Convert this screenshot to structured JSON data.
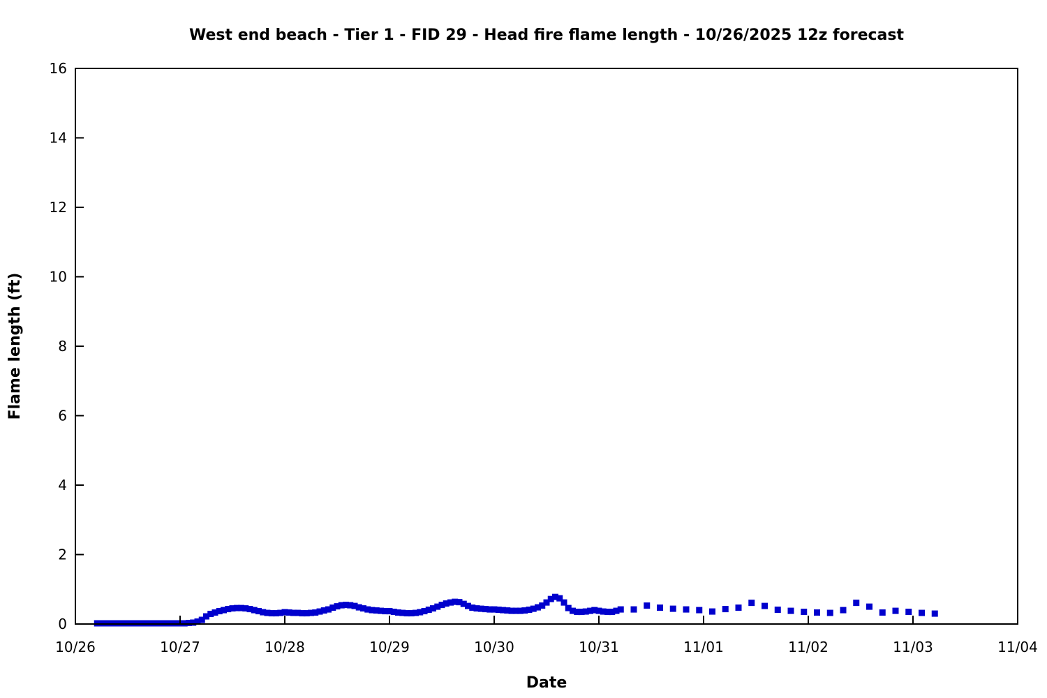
{
  "figure": {
    "background_color": "#ffffff"
  },
  "chart_data": {
    "type": "scatter",
    "title": "West end beach - Tier 1 - FID 29 - Head fire flame length - 10/26/2025 12z forecast",
    "xlabel": "Date",
    "ylabel": "Flame length (ft)",
    "grid": false,
    "legend": null,
    "axis_color": "#000000",
    "marker": "square",
    "marker_color": "#0000CD",
    "marker_size_px": 9,
    "ylim": [
      0,
      16
    ],
    "yticks": [
      0,
      2,
      4,
      6,
      8,
      10,
      12,
      14,
      16
    ],
    "x_axis_days": [
      "10/26",
      "10/27",
      "10/28",
      "10/29",
      "10/30",
      "10/31",
      "11/01",
      "11/02",
      "11/03",
      "11/04"
    ],
    "series": [
      {
        "cadence": "hourly",
        "start_day_index": 0,
        "start_hour": 5,
        "interval_hours": 1,
        "values": [
          0.02,
          0.02,
          0.02,
          0.02,
          0.02,
          0.02,
          0.02,
          0.02,
          0.02,
          0.02,
          0.02,
          0.02,
          0.02,
          0.02,
          0.02,
          0.02,
          0.02,
          0.02,
          0.02,
          0.02,
          0.02,
          0.03,
          0.04,
          0.07,
          0.12,
          0.22,
          0.29,
          0.33,
          0.37,
          0.4,
          0.43,
          0.45,
          0.46,
          0.46,
          0.45,
          0.43,
          0.4,
          0.37,
          0.34,
          0.32,
          0.31,
          0.31,
          0.32,
          0.34,
          0.33,
          0.32,
          0.32,
          0.31,
          0.31,
          0.32,
          0.33,
          0.36,
          0.39,
          0.42,
          0.47,
          0.51,
          0.54,
          0.55,
          0.54,
          0.52,
          0.48,
          0.45,
          0.42,
          0.4,
          0.39,
          0.38,
          0.37,
          0.37,
          0.35,
          0.33,
          0.32,
          0.31,
          0.31,
          0.32,
          0.34,
          0.37,
          0.41,
          0.45,
          0.5,
          0.55,
          0.59,
          0.62,
          0.64,
          0.63,
          0.58,
          0.52,
          0.47,
          0.45,
          0.44,
          0.43,
          0.42,
          0.42,
          0.41,
          0.4,
          0.39,
          0.38,
          0.38,
          0.38,
          0.39,
          0.41,
          0.44,
          0.48,
          0.53,
          0.62,
          0.72,
          0.78,
          0.74,
          0.62,
          0.46,
          0.38,
          0.35,
          0.35,
          0.36,
          0.38,
          0.4,
          0.38,
          0.36,
          0.35,
          0.35,
          0.38,
          0.42
        ]
      },
      {
        "cadence": "3-hourly",
        "start_day_index": 5,
        "start_hour": 8,
        "interval_hours": 3,
        "values": [
          0.42,
          0.53,
          0.47,
          0.44,
          0.42,
          0.4,
          0.36,
          0.43,
          0.47,
          0.61,
          0.52,
          0.41,
          0.38,
          0.35,
          0.33,
          0.32,
          0.4,
          0.61,
          0.5,
          0.33,
          0.38,
          0.35,
          0.32,
          0.3
        ]
      }
    ]
  }
}
